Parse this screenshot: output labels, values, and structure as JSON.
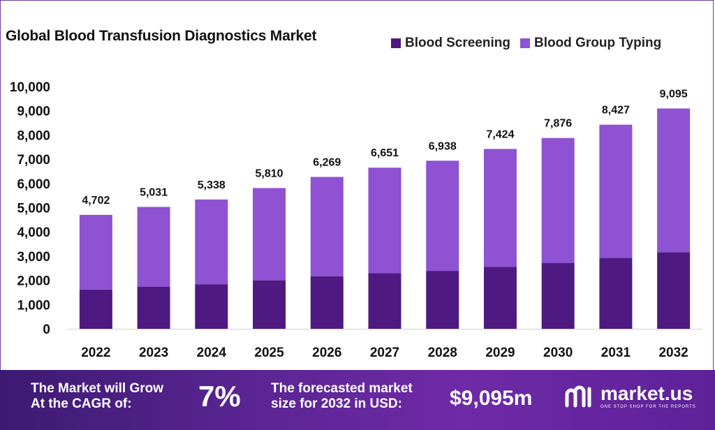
{
  "title": "Global Blood Transfusion Diagnostics Market",
  "legend": [
    {
      "name": "Blood Screening",
      "color": "#4e1a82"
    },
    {
      "name": "Blood Group Typing",
      "color": "#8e52d3"
    }
  ],
  "chart_data": {
    "type": "bar",
    "stacked": true,
    "title": "Global Blood Transfusion Diagnostics Market",
    "categories": [
      "2022",
      "2023",
      "2024",
      "2025",
      "2026",
      "2027",
      "2028",
      "2029",
      "2030",
      "2031",
      "2032"
    ],
    "series": [
      {
        "name": "Blood Screening",
        "color": "#4e1a82",
        "values": [
          1620,
          1740,
          1840,
          2000,
          2170,
          2300,
          2390,
          2560,
          2720,
          2930,
          3160
        ]
      },
      {
        "name": "Blood Group Typing",
        "color": "#8e52d3",
        "values": [
          3082,
          3291,
          3498,
          3810,
          4099,
          4351,
          4548,
          4864,
          5156,
          5497,
          5935
        ]
      }
    ],
    "totals": [
      4702,
      5031,
      5338,
      5810,
      6269,
      6651,
      6938,
      7424,
      7876,
      8427,
      9095
    ],
    "total_labels": [
      "4,702",
      "5,031",
      "5,338",
      "5,810",
      "6,269",
      "6,651",
      "6,938",
      "7,424",
      "7,876",
      "8,427",
      "9,095"
    ],
    "yticks": [
      0,
      1000,
      2000,
      3000,
      4000,
      5000,
      6000,
      7000,
      8000,
      9000,
      10000
    ],
    "ytick_labels": [
      "0",
      "1,000",
      "2,000",
      "3,000",
      "4,000",
      "5,000",
      "6,000",
      "7,000",
      "8,000",
      "9,000",
      "10,000"
    ],
    "ylim": [
      0,
      10000
    ],
    "xlabel": "",
    "ylabel": "",
    "grid": false,
    "legend_position": "top-right"
  },
  "footer": {
    "cagr_label_line1": "The Market will Grow",
    "cagr_label_line2": "At the CAGR of:",
    "cagr_value": "7%",
    "forecast_label_line1": "The forecasted market",
    "forecast_label_line2": "size for 2032 in USD:",
    "forecast_value": "$9,095m",
    "brand_name": "market.us",
    "brand_tagline": "ONE STOP SHOP FOR THE REPORTS"
  }
}
